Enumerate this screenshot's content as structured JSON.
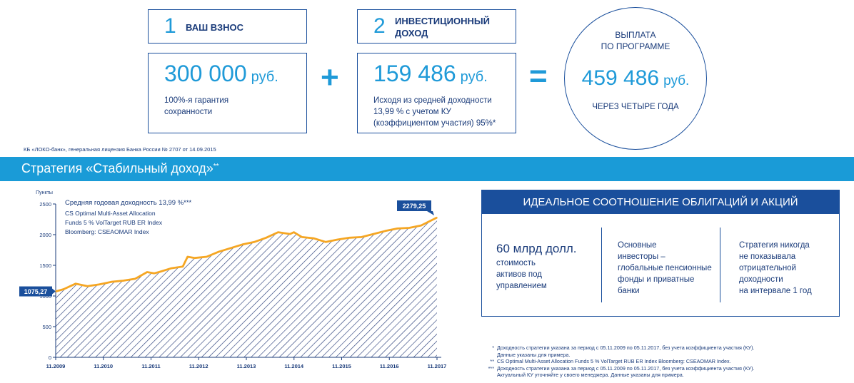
{
  "step1": {
    "number": "1",
    "label": "ВАШ ВЗНОС"
  },
  "step2": {
    "number": "2",
    "label_line1": "ИНВЕСТИЦИОННЫЙ",
    "label_line2": "ДОХОД"
  },
  "contribution": {
    "amount": "300 000",
    "currency": "руб.",
    "note_line1": "100%-я гарантия",
    "note_line2": "сохранности"
  },
  "income": {
    "amount": "159 486",
    "currency": "руб.",
    "note_line1": "Исходя из средней доходности",
    "note_line2": "13,99 % с учетом КУ",
    "note_line3": "(коэффициентом участия) 95%*"
  },
  "operators": {
    "plus": "+",
    "equals": "="
  },
  "payout": {
    "title_line1": "ВЫПЛАТА",
    "title_line2": "ПО ПРОГРАММЕ",
    "amount": "459 486",
    "currency": "руб.",
    "subtitle": "ЧЕРЕЗ ЧЕТЫРЕ ГОДА"
  },
  "license": "КБ «ЛОКО-банк», генеральная лицензия Банка России № 2707 от 14.09.2015",
  "banner": {
    "title": "Стратегия «Стабильный доход»",
    "mark": "**"
  },
  "colors": {
    "accent": "#1f9ad8",
    "navy": "#1a4f9c",
    "line": "#f5a623"
  },
  "chart_data": {
    "type": "area",
    "ylabel": "Пункты",
    "annotation_line1": "Средняя годовая доходность 13,99 %***",
    "annotation_line2": "CS Optimal Multi-Asset Allocation",
    "annotation_line3": "Funds 5 % VolTarget RUB ER Index",
    "annotation_line4": "Bloomberg: CSEAOMAR Index",
    "start_label": "1075,27",
    "end_label": "2279,25",
    "ylim": [
      0,
      2500
    ],
    "yticks": [
      "0",
      "500",
      "1000",
      "1500",
      "2000",
      "2500"
    ],
    "xticks": [
      "11.2009",
      "11.2010",
      "11.2011",
      "11.2012",
      "11.2013",
      "11.2014",
      "11.2015",
      "11.2016",
      "11.2017"
    ],
    "xlim": [
      2009.833,
      2017.833
    ],
    "grid": false,
    "x": [
      2009.833,
      2010.0,
      2010.25,
      2010.5,
      2010.75,
      2011.0,
      2011.25,
      2011.5,
      2011.75,
      2011.9,
      2012.0,
      2012.25,
      2012.5,
      2012.6,
      2012.75,
      2013.0,
      2013.25,
      2013.5,
      2013.75,
      2014.0,
      2014.25,
      2014.5,
      2014.75,
      2014.83,
      2015.0,
      2015.25,
      2015.5,
      2015.75,
      2016.0,
      2016.25,
      2016.5,
      2016.75,
      2017.0,
      2017.25,
      2017.5,
      2017.833
    ],
    "y": [
      1075,
      1110,
      1200,
      1160,
      1190,
      1230,
      1250,
      1280,
      1390,
      1370,
      1390,
      1450,
      1480,
      1640,
      1620,
      1640,
      1720,
      1780,
      1840,
      1880,
      1950,
      2040,
      2010,
      2040,
      1960,
      1940,
      1880,
      1920,
      1950,
      1960,
      2010,
      2060,
      2100,
      2110,
      2150,
      2279
    ]
  },
  "panel": {
    "title": "ИДЕАЛЬНОЕ СООТНОШЕНИЕ ОБЛИГАЦИЙ И АКЦИЙ",
    "col1_big": "60 млрд долл.",
    "col1_line1": "стоимость",
    "col1_line2": "активов под",
    "col1_line3": "управлением",
    "col2_line1": "Основные",
    "col2_line2": "инвесторы –",
    "col2_line3": "глобальные пенсионные",
    "col2_line4": "фонды и приватные",
    "col2_line5": "банки",
    "col3_line1": "Стратегия никогда",
    "col3_line2": "не показывала",
    "col3_line3": "отрицательной",
    "col3_line4": "доходности",
    "col3_line5": "на интервале 1 год"
  },
  "footnotes": {
    "mark1": "*",
    "fn1_line1": "Доходность стратегии указана за период с 05.11.2009 по 05.11.2017, без учета коэффициента участия (КУ).",
    "fn1_line2": "Данные указаны для примера.",
    "mark2": "**",
    "fn2_line1": "CS Optimal Multi-Asset Allocation Funds 5 % VolTarget RUB ER Index Bloomberg: CSEAOMAR Index.",
    "mark3": "***",
    "fn3_line1": "Доходность стратегии указана за период с 05.11.2009 по 05.11.2017, без учета коэффициента участия (КУ).",
    "fn3_line2": "Актуальный КУ уточняйте у своего менеджера. Данные указаны для примера."
  }
}
